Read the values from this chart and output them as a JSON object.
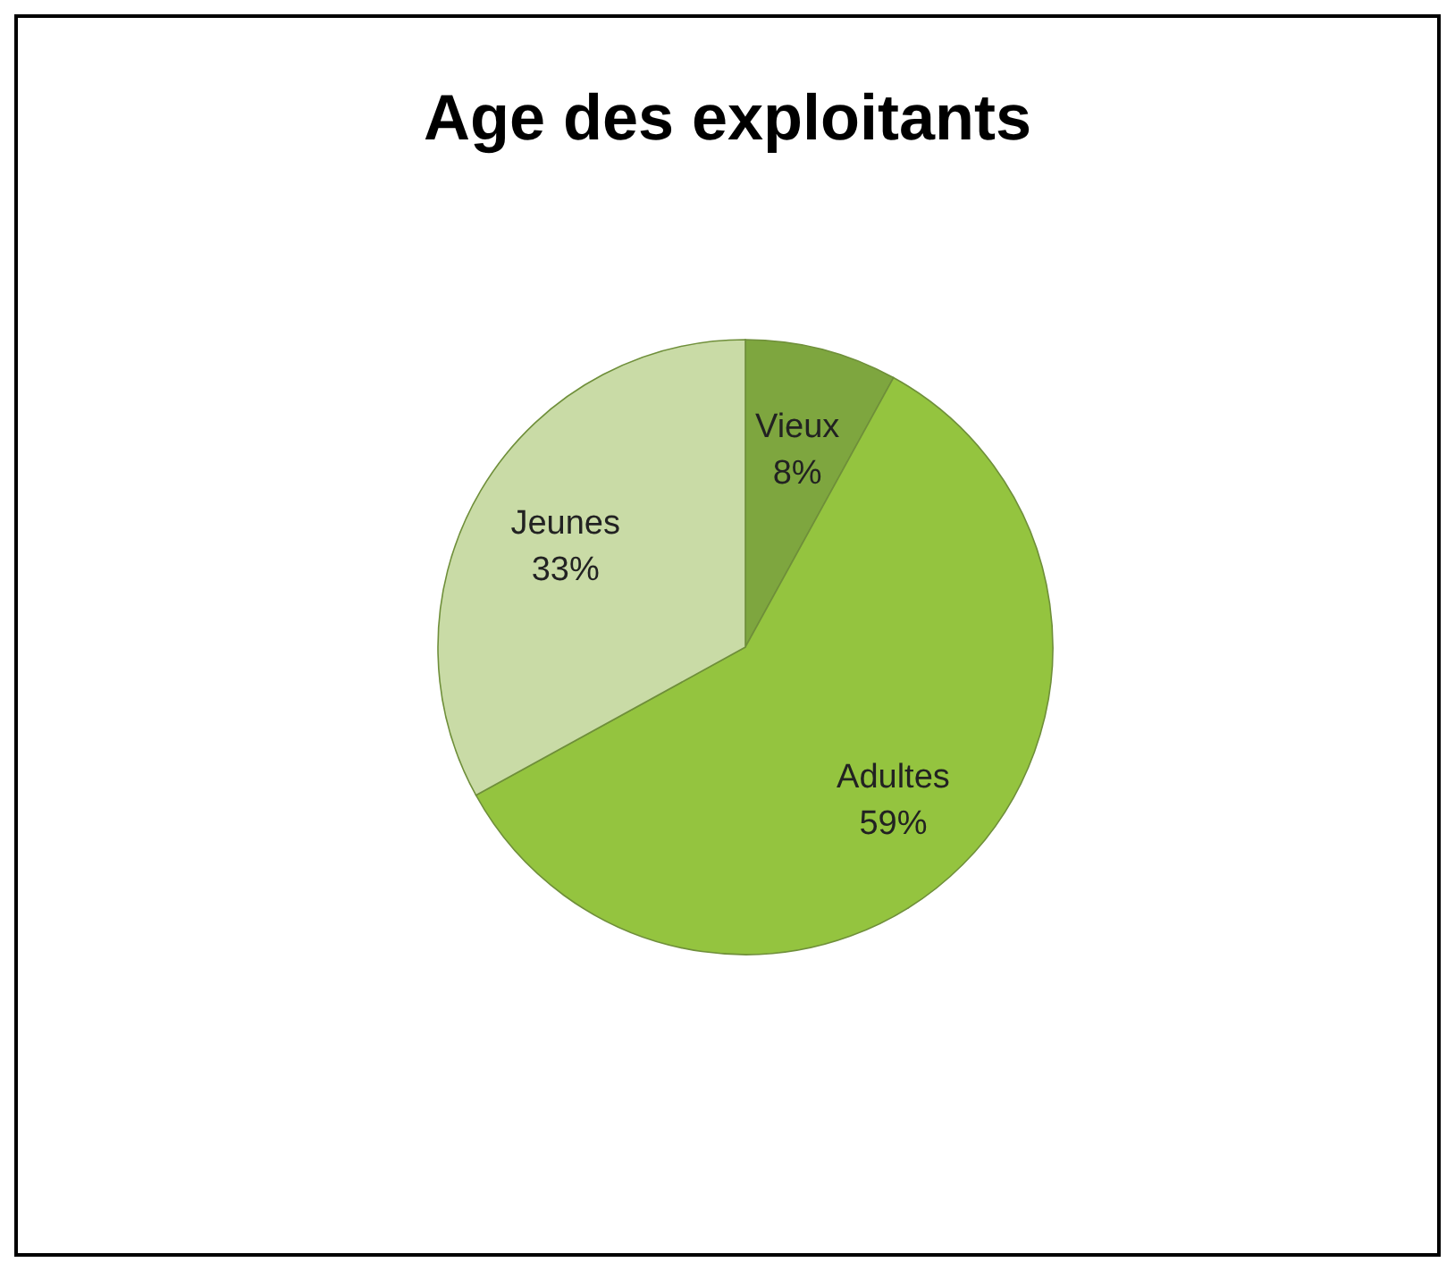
{
  "chart_data": {
    "type": "pie",
    "title": "Age des exploitants",
    "categories": [
      "Vieux",
      "Adultes",
      "Jeunes"
    ],
    "values": [
      8,
      59,
      33
    ],
    "value_labels": [
      "8%",
      "59%",
      "33%"
    ],
    "colors": [
      "#7ea63f",
      "#94c43f",
      "#c9dba6"
    ],
    "legend": false
  }
}
